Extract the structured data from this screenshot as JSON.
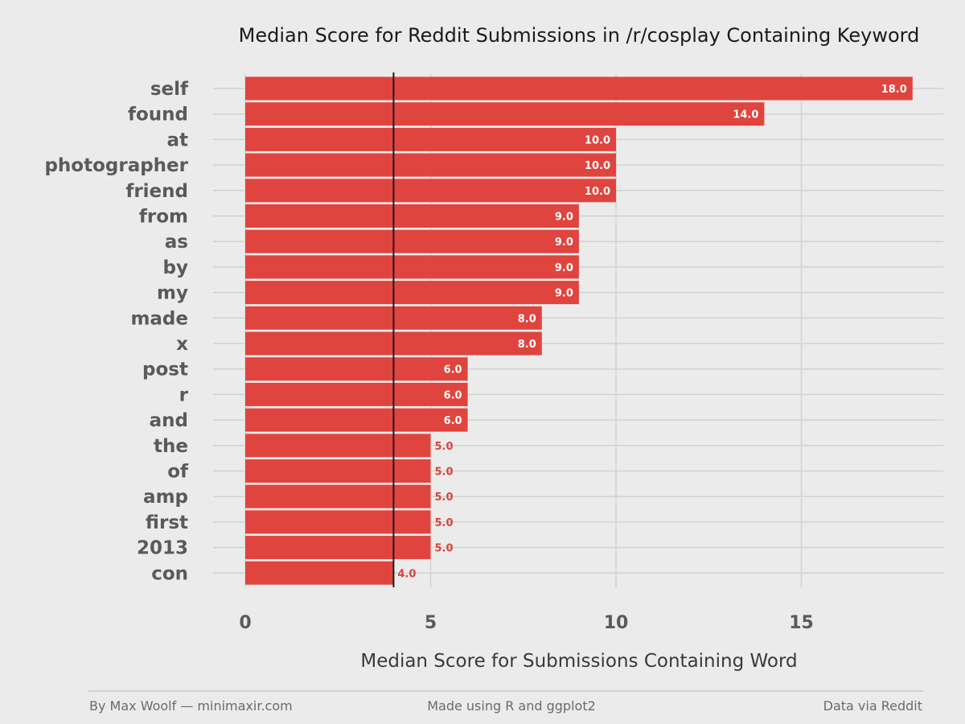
{
  "chart_data": {
    "type": "bar",
    "orientation": "horizontal",
    "title": "Median Score for Reddit Submissions in /r/cosplay Containing Keyword",
    "xlabel": "Median Score for Submissions Containing Word",
    "ylabel": "",
    "categories": [
      "self",
      "found",
      "at",
      "photographer",
      "friend",
      "from",
      "as",
      "by",
      "my",
      "made",
      "x",
      "post",
      "r",
      "and",
      "the",
      "of",
      "amp",
      "first",
      "2013",
      "con"
    ],
    "values": [
      18,
      14,
      10,
      10,
      10,
      9,
      9,
      9,
      9,
      8,
      8,
      6,
      6,
      6,
      5,
      5,
      5,
      5,
      5,
      4
    ],
    "value_labels": [
      "18.0",
      "14.0",
      "10.0",
      "10.0",
      "10.0",
      "9.0",
      "9.0",
      "9.0",
      "9.0",
      "8.0",
      "8.0",
      "6.0",
      "6.0",
      "6.0",
      "5.0",
      "5.0",
      "5.0",
      "5.0",
      "5.0",
      "4.0"
    ],
    "xlim": [
      0,
      18.9
    ],
    "xticks": [
      "0",
      "5",
      "10",
      "15"
    ],
    "reference_line": 4,
    "grid": true,
    "bar_color": "#e0443e"
  },
  "footer": {
    "left": "By Max Woolf — minimaxir.com",
    "center": "Made using R and ggplot2",
    "right": "Data via Reddit"
  }
}
